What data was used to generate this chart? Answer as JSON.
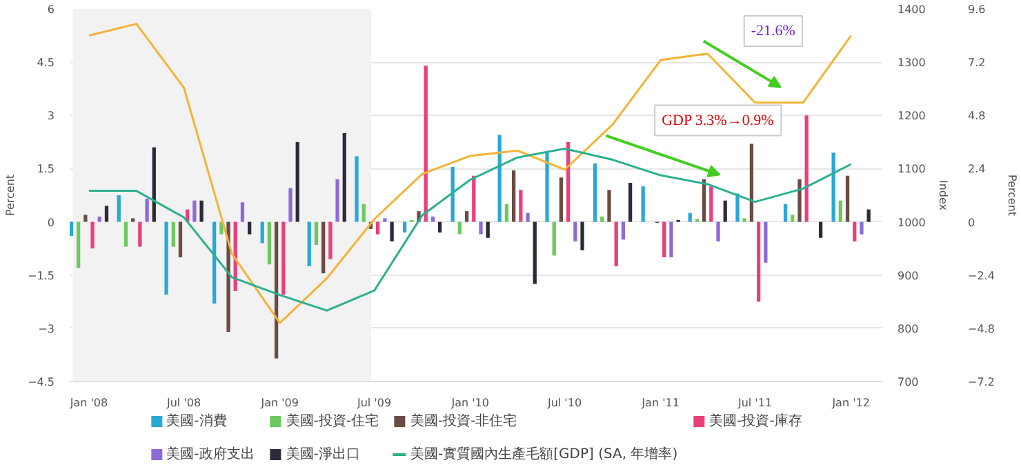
{
  "chart_data": {
    "type": "bar",
    "x": [
      "2008-01",
      "2008-04",
      "2008-07",
      "2008-10",
      "2009-01",
      "2009-04",
      "2009-07",
      "2009-10",
      "2010-01",
      "2010-04",
      "2010-07",
      "2010-10",
      "2011-01",
      "2011-04",
      "2011-07",
      "2011-10",
      "2012-01"
    ],
    "series": [
      {
        "name": "美國-消費",
        "color": "#29a8d8",
        "values": [
          -0.4,
          0.75,
          -2.05,
          -2.3,
          -0.6,
          -1.25,
          1.85,
          -0.3,
          1.55,
          2.45,
          1.95,
          1.65,
          1.0,
          0.25,
          0.8,
          0.5,
          1.95
        ]
      },
      {
        "name": "美國-投資-住宅",
        "color": "#6cc95e",
        "values": [
          -1.3,
          -0.7,
          -0.7,
          -0.35,
          -1.2,
          -0.65,
          0.5,
          0.05,
          -0.35,
          0.5,
          -0.95,
          0.15,
          0.0,
          0.08,
          0.1,
          0.2,
          0.6
        ]
      },
      {
        "name": "美國-投資-非住宅",
        "color": "#6b4c44",
        "values": [
          0.2,
          0.1,
          -1.0,
          -3.1,
          -3.85,
          -1.45,
          -0.2,
          0.3,
          0.3,
          1.45,
          1.25,
          0.9,
          -0.03,
          1.2,
          2.2,
          1.2,
          1.3
        ]
      },
      {
        "name": "美國-投資-庫存",
        "color": "#e8407a",
        "values": [
          -0.75,
          -0.7,
          0.35,
          -1.95,
          -2.05,
          -1.05,
          -0.35,
          4.4,
          1.3,
          0.9,
          2.25,
          -1.25,
          -1.0,
          1.0,
          -2.25,
          3.0,
          -0.55
        ]
      },
      {
        "name": "美國-政府支出",
        "color": "#8c6bd8",
        "values": [
          0.15,
          0.65,
          0.6,
          0.55,
          0.95,
          1.2,
          0.1,
          0.15,
          -0.35,
          0.25,
          -0.55,
          -0.5,
          -1.0,
          -0.55,
          -1.15,
          0.0,
          -0.35
        ]
      },
      {
        "name": "美國-淨出口",
        "color": "#2b2b3b",
        "values": [
          0.45,
          2.1,
          0.6,
          -0.35,
          2.25,
          2.5,
          -0.55,
          -0.3,
          -0.45,
          -1.75,
          -0.8,
          1.1,
          0.05,
          0.6,
          0.0,
          -0.45,
          0.35
        ]
      },
      {
        "type": "line",
        "axis": "y2",
        "color": "#f5b335",
        "values": [
          1350,
          1372,
          1252,
          940,
          810,
          894,
          1005,
          1090,
          1124,
          1134,
          1098,
          1183,
          1304,
          1316,
          1224,
          1224,
          1350
        ]
      },
      {
        "type": "line",
        "axis": "y3",
        "name": "美國-實質國內生產毛額[GDP] (SA, 年增率)",
        "color": "#2bb08f",
        "values": [
          1.4,
          1.4,
          0.2,
          -2.5,
          -3.3,
          -4.0,
          -3.1,
          0.3,
          1.9,
          2.9,
          3.3,
          2.8,
          2.1,
          1.7,
          0.9,
          1.5,
          2.6
        ]
      }
    ],
    "xlim": [
      "2007-11-25",
      "2012-03-01"
    ],
    "xticks": [
      {
        "value": "2008-01",
        "label": "Jan '08"
      },
      {
        "value": "2008-07",
        "label": "Jul '08"
      },
      {
        "value": "2009-01",
        "label": "Jan '09"
      },
      {
        "value": "2009-07",
        "label": "Jul '09"
      },
      {
        "value": "2010-01",
        "label": "Jan '10"
      },
      {
        "value": "2010-07",
        "label": "Jul '10"
      },
      {
        "value": "2011-01",
        "label": "Jan '11"
      },
      {
        "value": "2011-07",
        "label": "Jul '11"
      },
      {
        "value": "2012-01",
        "label": "Jan '12"
      }
    ],
    "ylabel": "Percent",
    "ylim": [
      -4.5,
      6
    ],
    "yticks": [
      -4.5,
      -3,
      -1.5,
      0,
      1.5,
      3,
      4.5,
      6
    ],
    "y2label": "Index",
    "y2lim": [
      700,
      1400
    ],
    "y2ticks": [
      700,
      800,
      900,
      1000,
      1100,
      1200,
      1300,
      1400
    ],
    "y3label": "Percent",
    "y3lim": [
      -7.2,
      9.6
    ],
    "y3ticks": [
      -7.2,
      -4.8,
      -2.4,
      0,
      2.4,
      4.8,
      7.2,
      9.6
    ],
    "bands": [
      {
        "axis": "x",
        "from": "2007-12",
        "to": "2009-06-25",
        "color": "#f2f2f2"
      }
    ],
    "annotations": [
      "GDP 3.3%→0.9%",
      "-21.6%"
    ],
    "grid": "y",
    "legend": "bottom"
  }
}
